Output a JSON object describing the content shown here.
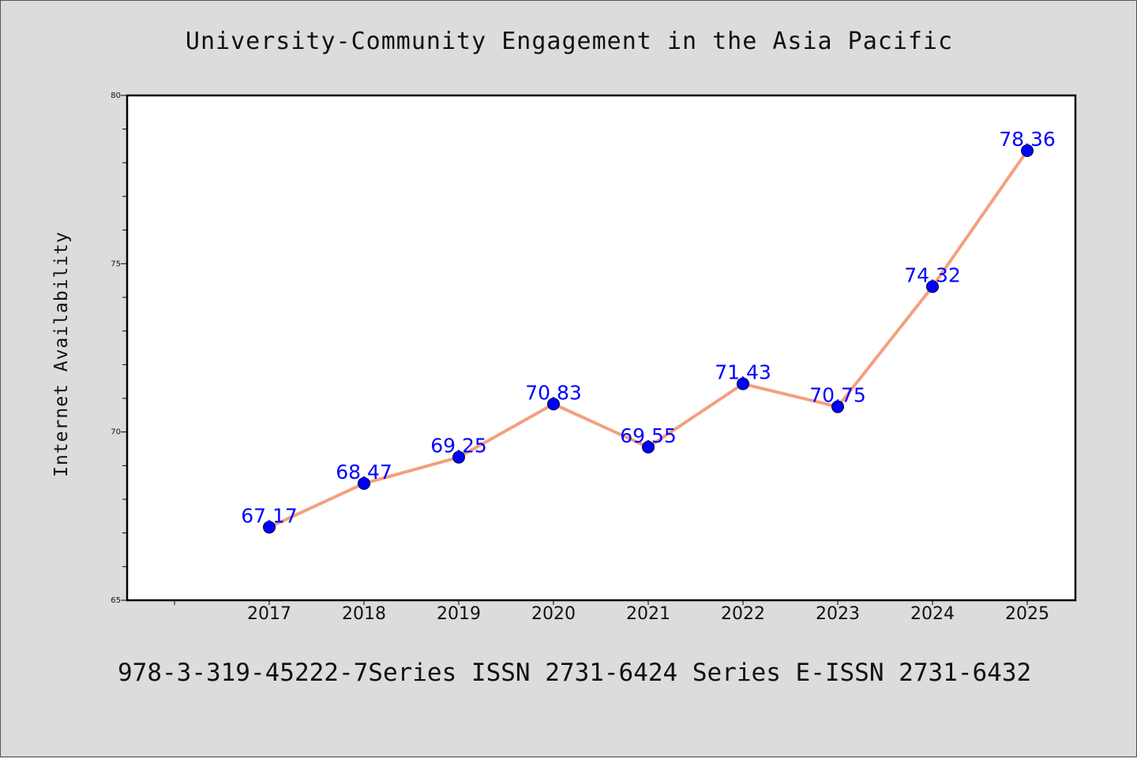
{
  "title": "University-Community Engagement in the Asia Pacific",
  "footer": "978-3-319-45222-7Series ISSN 2731-6424 Series E-ISSN 2731-6432",
  "chart_data": {
    "type": "line",
    "title": "University-Community Engagement in the Asia Pacific",
    "xlabel": "",
    "ylabel": "Internet Availability",
    "categories": [
      "2017",
      "2018",
      "2019",
      "2020",
      "2021",
      "2022",
      "2023",
      "2024",
      "2025"
    ],
    "series": [
      {
        "values": [
          67.17,
          68.47,
          69.25,
          70.83,
          69.55,
          71.43,
          70.75,
          74.32,
          78.36
        ],
        "labels": [
          "67.17",
          "68.47",
          "69.25",
          "70.83",
          "69.55",
          "71.43",
          "70.75",
          "74.32",
          "78.36"
        ],
        "line_color": "#f4a07e",
        "marker_color": "#0000ff"
      }
    ],
    "ylim": [
      65,
      80
    ],
    "yticks": [
      "65",
      "70",
      "75",
      "80"
    ],
    "grid": false,
    "legend": "none"
  }
}
